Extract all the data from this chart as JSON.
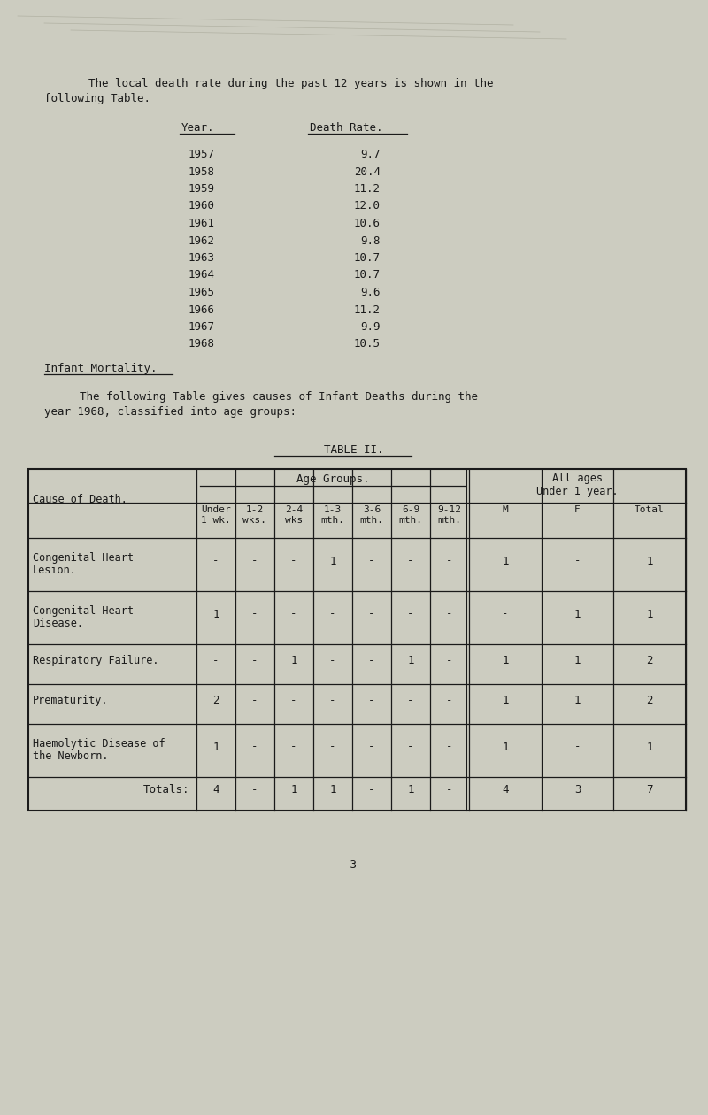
{
  "bg_color": "#ccccc0",
  "text_color": "#1a1a1a",
  "page_width": 8.0,
  "page_height": 12.6,
  "intro_text_line1": "The local death rate during the past 12 years is shown in the",
  "intro_text_line2": "following Table.",
  "table1_header_year": "Year.",
  "table1_header_rate": "Death Rate.",
  "table1_data": [
    [
      "1957",
      "9.7"
    ],
    [
      "1958",
      "20.4"
    ],
    [
      "1959",
      "11.2"
    ],
    [
      "1960",
      "12.0"
    ],
    [
      "1961",
      "10.6"
    ],
    [
      "1962",
      "9.8"
    ],
    [
      "1963",
      "10.7"
    ],
    [
      "1964",
      "10.7"
    ],
    [
      "1965",
      "9.6"
    ],
    [
      "1966",
      "11.2"
    ],
    [
      "1967",
      "9.9"
    ],
    [
      "1968",
      "10.5"
    ]
  ],
  "infant_heading": "Infant Mortality.",
  "infant_text_line1": "The following Table gives causes of Infant Deaths during the",
  "infant_text_line2": "year 1968, classified into age groups:",
  "table2_title": "TABLE II.",
  "table2_subheaders": [
    "Under\n1 wk.",
    "1-2\nwks.",
    "2-4\nwks",
    "1-3\nmth.",
    "3-6\nmth.",
    "6-9\nmth.",
    "9-12\nmth.",
    "M",
    "F",
    "Total"
  ],
  "table2_rows": [
    {
      "cause": [
        "Congenital Heart",
        "Lesion."
      ],
      "vals": [
        "-",
        "-",
        "-",
        "1",
        "-",
        "-",
        "-",
        "1",
        "-",
        "1"
      ]
    },
    {
      "cause": [
        "Congenital Heart",
        "Disease."
      ],
      "vals": [
        "1",
        "-",
        "-",
        "-",
        "-",
        "-",
        "-",
        "-",
        "1",
        "1"
      ]
    },
    {
      "cause": [
        "Respiratory Failure."
      ],
      "vals": [
        "-",
        "-",
        "1",
        "-",
        "-",
        "1",
        "-",
        "1",
        "1",
        "2"
      ]
    },
    {
      "cause": [
        "Prematurity."
      ],
      "vals": [
        "2",
        "-",
        "-",
        "-",
        "-",
        "-",
        "-",
        "1",
        "1",
        "2"
      ]
    },
    {
      "cause": [
        "Haemolytic Disease of",
        "the Newborn."
      ],
      "vals": [
        "1",
        "-",
        "-",
        "-",
        "-",
        "-",
        "-",
        "1",
        "-",
        "1"
      ]
    },
    {
      "cause": [
        "Totals:"
      ],
      "vals": [
        "4",
        "-",
        "1",
        "1",
        "-",
        "1",
        "-",
        "4",
        "3",
        "7"
      ],
      "is_total": true
    }
  ],
  "page_number": "-3-"
}
